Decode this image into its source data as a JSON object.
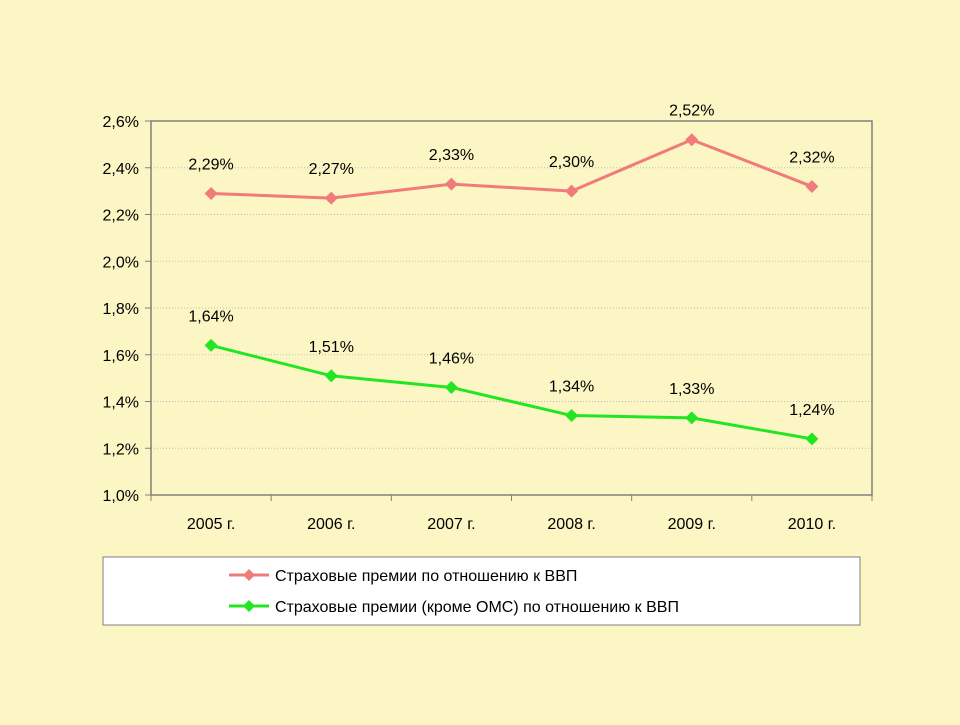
{
  "chart_data": {
    "type": "line",
    "categories": [
      "2005 г.",
      "2006 г.",
      "2007 г.",
      "2008 г.",
      "2009 г.",
      "2010 г."
    ],
    "y_ticks": [
      "1,0%",
      "1,2%",
      "1,4%",
      "1,6%",
      "1,8%",
      "2,0%",
      "2,2%",
      "2,4%",
      "2,6%"
    ],
    "ylim": [
      1.0,
      2.6
    ],
    "grid": true,
    "legend_position": "bottom",
    "series": [
      {
        "name": "Страховые премии по отношению к ВВП",
        "color": "#f07b7b",
        "values": [
          2.29,
          2.27,
          2.33,
          2.3,
          2.52,
          2.32
        ],
        "labels": [
          "2,29%",
          "2,27%",
          "2,33%",
          "2,30%",
          "2,52%",
          "2,32%"
        ]
      },
      {
        "name": "Страховые премии (кроме ОМС) по отношению к ВВП",
        "color": "#22e622",
        "values": [
          1.64,
          1.51,
          1.46,
          1.34,
          1.33,
          1.24
        ],
        "labels": [
          "1,64%",
          "1,51%",
          "1,46%",
          "1,34%",
          "1,33%",
          "1,24%"
        ]
      }
    ]
  }
}
